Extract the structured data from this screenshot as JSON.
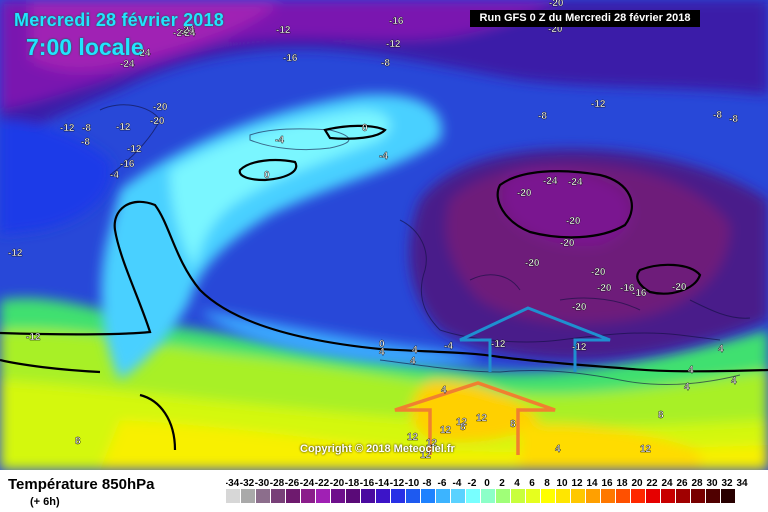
{
  "header": {
    "date": "Mercredi 28 février 2018",
    "time": "7:00 locale",
    "run": "Run GFS 0 Z du Mercredi 28 février 2018"
  },
  "footer": {
    "title": "Température 850hPa",
    "subtitle": "(+ 6h)",
    "copyright": "Copyright © 2018 Meteociel.fr"
  },
  "legend": {
    "labels": [
      "-34",
      "-32",
      "-30",
      "-28",
      "-26",
      "-24",
      "-22",
      "-20",
      "-18",
      "-16",
      "-14",
      "-12",
      "-10",
      "-8",
      "-6",
      "-4",
      "-2",
      "0",
      "2",
      "4",
      "6",
      "8",
      "10",
      "12",
      "14",
      "16",
      "18",
      "20",
      "22",
      "24",
      "26",
      "28",
      "30",
      "32",
      "34"
    ],
    "colors": [
      "#d7d7d7",
      "#a9a9a9",
      "#8c6e8c",
      "#784078",
      "#6e1a6e",
      "#8b1d8b",
      "#a020b4",
      "#6e0f8c",
      "#5a0a78",
      "#4a0aa0",
      "#3c14c8",
      "#2830e6",
      "#1e5af0",
      "#1e82ff",
      "#3cb4ff",
      "#5ad2ff",
      "#78ffff",
      "#8cffc8",
      "#a0ff78",
      "#c8ff3c",
      "#e6ff1e",
      "#ffff00",
      "#ffe600",
      "#ffc800",
      "#ffa000",
      "#ff7800",
      "#ff5000",
      "#ff2800",
      "#e60000",
      "#c80000",
      "#a00000",
      "#780000",
      "#500000",
      "#280000"
    ]
  },
  "map_labels": [
    {
      "text": "-24"
    },
    {
      "text": "-24"
    },
    {
      "text": "-12"
    },
    {
      "text": "-16"
    },
    {
      "text": "-16"
    },
    {
      "text": "-12"
    },
    {
      "text": "-8"
    },
    {
      "text": "-20"
    },
    {
      "text": "-24"
    },
    {
      "text": "-24"
    },
    {
      "text": "-20"
    },
    {
      "text": "-24"
    },
    {
      "text": "-20"
    },
    {
      "text": "-12"
    },
    {
      "text": "-8"
    },
    {
      "text": "-8"
    },
    {
      "text": "-8"
    },
    {
      "text": "-12"
    },
    {
      "text": "-8"
    },
    {
      "text": "-12"
    },
    {
      "text": "-20"
    },
    {
      "text": "-8"
    },
    {
      "text": "-12"
    },
    {
      "text": "-16"
    },
    {
      "text": "-4"
    },
    {
      "text": "-12"
    },
    {
      "text": "-4"
    },
    {
      "text": "0"
    },
    {
      "text": "-4"
    },
    {
      "text": "0"
    },
    {
      "text": "-24"
    },
    {
      "text": "-24"
    },
    {
      "text": "-20"
    },
    {
      "text": "-20"
    },
    {
      "text": "-20"
    },
    {
      "text": "-20"
    },
    {
      "text": "-20"
    },
    {
      "text": "-20"
    },
    {
      "text": "-16"
    },
    {
      "text": "-16"
    },
    {
      "text": "-20"
    },
    {
      "text": "-20"
    },
    {
      "text": "-12"
    },
    {
      "text": "-12"
    },
    {
      "text": "0"
    },
    {
      "text": "4"
    },
    {
      "text": "4"
    },
    {
      "text": "-4"
    },
    {
      "text": "-12"
    },
    {
      "text": "4"
    },
    {
      "text": "4"
    },
    {
      "text": "4"
    },
    {
      "text": "4"
    },
    {
      "text": "4"
    },
    {
      "text": "4"
    },
    {
      "text": "8"
    },
    {
      "text": "8"
    },
    {
      "text": "12"
    },
    {
      "text": "12"
    },
    {
      "text": "12"
    },
    {
      "text": "12"
    },
    {
      "text": "8"
    },
    {
      "text": "12"
    },
    {
      "text": "12"
    },
    {
      "text": "12"
    },
    {
      "text": "4"
    },
    {
      "text": "8"
    }
  ]
}
